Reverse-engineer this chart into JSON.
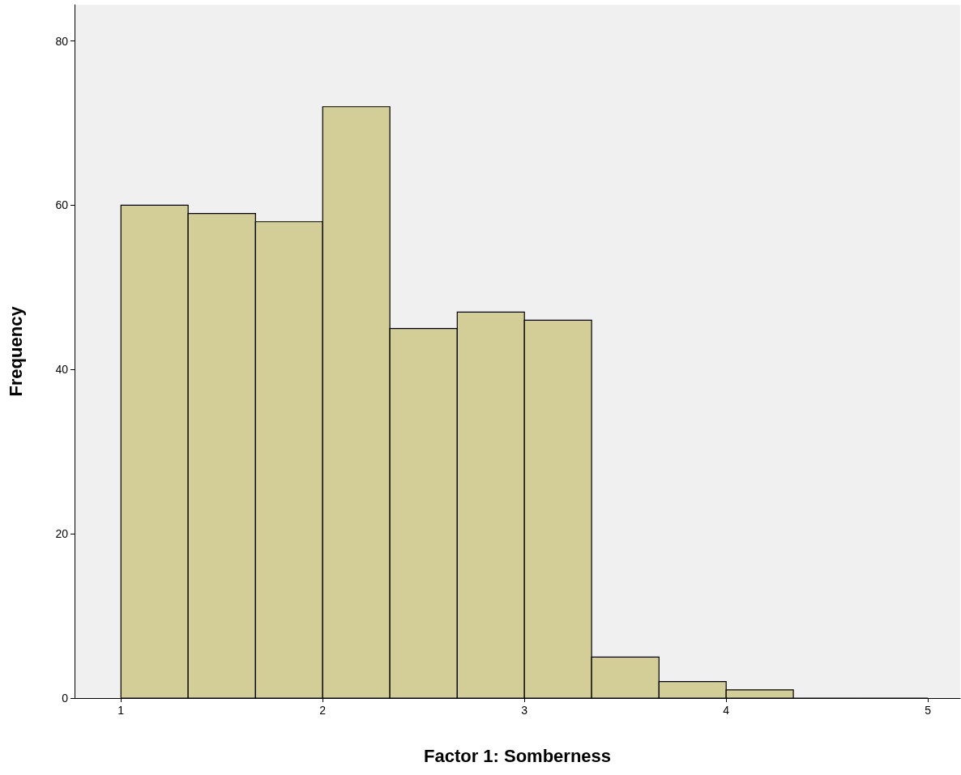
{
  "chart_data": {
    "type": "histogram",
    "xlabel": "Factor 1: Somberness",
    "ylabel": "Frequency",
    "bins": [
      1,
      1.333,
      1.667,
      2,
      2.333,
      2.667,
      3,
      3.333,
      3.667,
      4,
      4.333,
      4.667,
      5
    ],
    "values": [
      60,
      59,
      58,
      72,
      45,
      47,
      46,
      5,
      2,
      1,
      0,
      0
    ],
    "color": "#d3ce97",
    "xlim": [
      0.77,
      5.16
    ],
    "xticks": [
      1,
      2,
      3,
      4,
      5
    ],
    "ylim": [
      0,
      84.4
    ],
    "yticks": [
      0,
      20,
      40,
      60,
      80
    ],
    "grid": false
  }
}
